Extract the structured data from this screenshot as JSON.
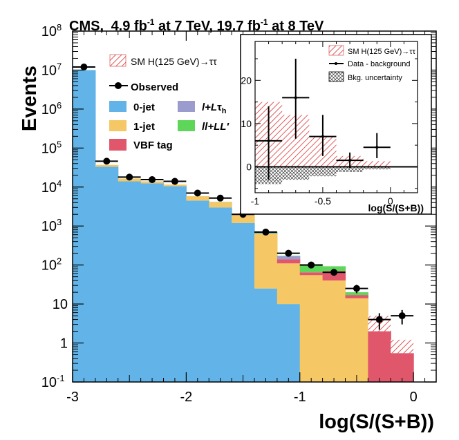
{
  "header": {
    "experiment": "CMS,",
    "lumi1": "4.9 fb",
    "lumi1_sup": "-1",
    "energy1": " at 7 TeV, ",
    "lumi2": "19.7 fb",
    "lumi2_sup": "-1",
    "energy2": " at 8 TeV"
  },
  "main_legend": {
    "signal": "SM H(125 GeV)→ττ",
    "observed": "Observed",
    "zerojet": "0-jet",
    "onejet": "1-jet",
    "vbf": "VBF tag",
    "lltau_l": "l+L",
    "lltau_tau": "τ",
    "lltau_sub": "h",
    "llll": "ll+LL′"
  },
  "inset_legend": {
    "signal": "SM H(125 GeV)→ττ",
    "data": "Data - background",
    "unc": "Bkg. uncertainty"
  },
  "colors": {
    "zerojet": "#62b4e8",
    "onejet": "#f6c765",
    "vbf": "#e0566b",
    "lltau": "#9b9bce",
    "llll": "#5ed65a",
    "signal_hatch": "#d83030"
  },
  "chart_data": [
    {
      "type": "bar",
      "stacked": true,
      "log_y": true,
      "xlabel": "log(S/(S+B))",
      "ylabel": "Events",
      "xlim": [
        -3.0,
        0.2
      ],
      "ylim": [
        0.1,
        100000000
      ],
      "x_ticks": [
        -3,
        -2,
        -1,
        0
      ],
      "x_tick_labels": [
        "-3",
        "-2",
        "-1",
        "0"
      ],
      "y_ticks": [
        {
          "base": "10",
          "exp": "-1"
        },
        {
          "base": "1",
          "exp": ""
        },
        {
          "base": "10",
          "exp": ""
        },
        {
          "base": "10",
          "exp": "2"
        },
        {
          "base": "10",
          "exp": "3"
        },
        {
          "base": "10",
          "exp": "4"
        },
        {
          "base": "10",
          "exp": "5"
        },
        {
          "base": "10",
          "exp": "6"
        },
        {
          "base": "10",
          "exp": "7"
        },
        {
          "base": "10",
          "exp": "8"
        }
      ],
      "bin_edges": [
        -3.0,
        -2.8,
        -2.6,
        -2.4,
        -2.2,
        -2.0,
        -1.8,
        -1.6,
        -1.4,
        -1.2,
        -1.0,
        -0.8,
        -0.6,
        -0.4,
        -0.2,
        0.0
      ],
      "series": [
        {
          "name": "0-jet",
          "color_key": "zerojet",
          "values": [
            10000000,
            33000,
            14000,
            12500,
            10500,
            4500,
            3000,
            1200,
            25,
            10,
            0,
            0,
            0,
            0,
            0
          ]
        },
        {
          "name": "1-jet",
          "color_key": "onejet",
          "values": [
            0,
            4000,
            2500,
            1500,
            1000,
            1300,
            1100,
            700,
            600,
            100,
            55,
            40,
            14,
            0,
            0
          ]
        },
        {
          "name": "VBF tag",
          "color_key": "vbf",
          "values": [
            0,
            0,
            0,
            0,
            0,
            0,
            0,
            0,
            0,
            30,
            10,
            30,
            3,
            2,
            0.55
          ]
        },
        {
          "name": "l+Lτh",
          "color_key": "lltau",
          "values": [
            0,
            0,
            0,
            0,
            6,
            6,
            16,
            25,
            28,
            28,
            0,
            0,
            0,
            0,
            0
          ]
        },
        {
          "name": "ll+LL′",
          "color_key": "llll",
          "values": [
            0.8,
            3,
            6,
            1.2,
            10,
            8,
            45,
            10,
            55,
            4,
            40,
            23,
            3,
            0,
            0
          ]
        }
      ],
      "signal": {
        "name": "SM H(125 GeV)→ττ",
        "values": [
          0,
          0,
          0,
          0,
          0,
          0,
          0,
          0,
          0,
          0,
          0,
          0,
          0,
          1.5,
          1.2
        ]
      },
      "observed": {
        "name": "Observed",
        "x": [
          -2.9,
          -2.7,
          -2.5,
          -2.3,
          -2.1,
          -1.9,
          -1.7,
          -1.5,
          -1.3,
          -1.1,
          -0.9,
          -0.7,
          -0.5,
          -0.3,
          -0.1
        ],
        "y": [
          12000000,
          46000,
          18000,
          15500,
          14000,
          7000,
          5200,
          2000,
          700,
          200,
          100,
          65,
          25,
          4,
          5
        ],
        "yerr": [
          0,
          0,
          0,
          0,
          0,
          0,
          0,
          0,
          0,
          0,
          0,
          0,
          6,
          1.8,
          2
        ]
      }
    },
    {
      "type": "bar",
      "title": "",
      "xlabel": "log(S/(S+B))",
      "ylabel": "",
      "xlim": [
        -1.0,
        0.2
      ],
      "ylim": [
        -6,
        29
      ],
      "x_ticks": [
        -1,
        -0.5,
        0
      ],
      "x_tick_labels": [
        "-1",
        "-0.5",
        "0"
      ],
      "y_ticks": [
        0,
        10,
        20
      ],
      "y_tick_labels": [
        "0",
        "10",
        "20"
      ],
      "bin_edges": [
        -1.0,
        -0.8,
        -0.6,
        -0.4,
        -0.2,
        0.0
      ],
      "signal": {
        "name": "SM H(125 GeV)→ττ",
        "values": [
          15,
          12,
          7,
          2.5,
          1.3
        ]
      },
      "bkg_uncertainty": {
        "name": "Bkg. uncertainty",
        "values": [
          -4,
          -3,
          -2.2,
          -1.2,
          -0.6
        ]
      },
      "data_minus_background": {
        "name": "Data - background",
        "x": [
          -0.9,
          -0.7,
          -0.5,
          -0.3,
          -0.1
        ],
        "xerr": [
          0.1,
          0.1,
          0.1,
          0.1,
          0.1
        ],
        "y": [
          6,
          16,
          7,
          1.5,
          4.5
        ],
        "yerr_low": [
          9,
          9.5,
          4.5,
          1.8,
          2.5
        ],
        "yerr_high": [
          8,
          9,
          5,
          1.8,
          3.3
        ]
      }
    }
  ]
}
